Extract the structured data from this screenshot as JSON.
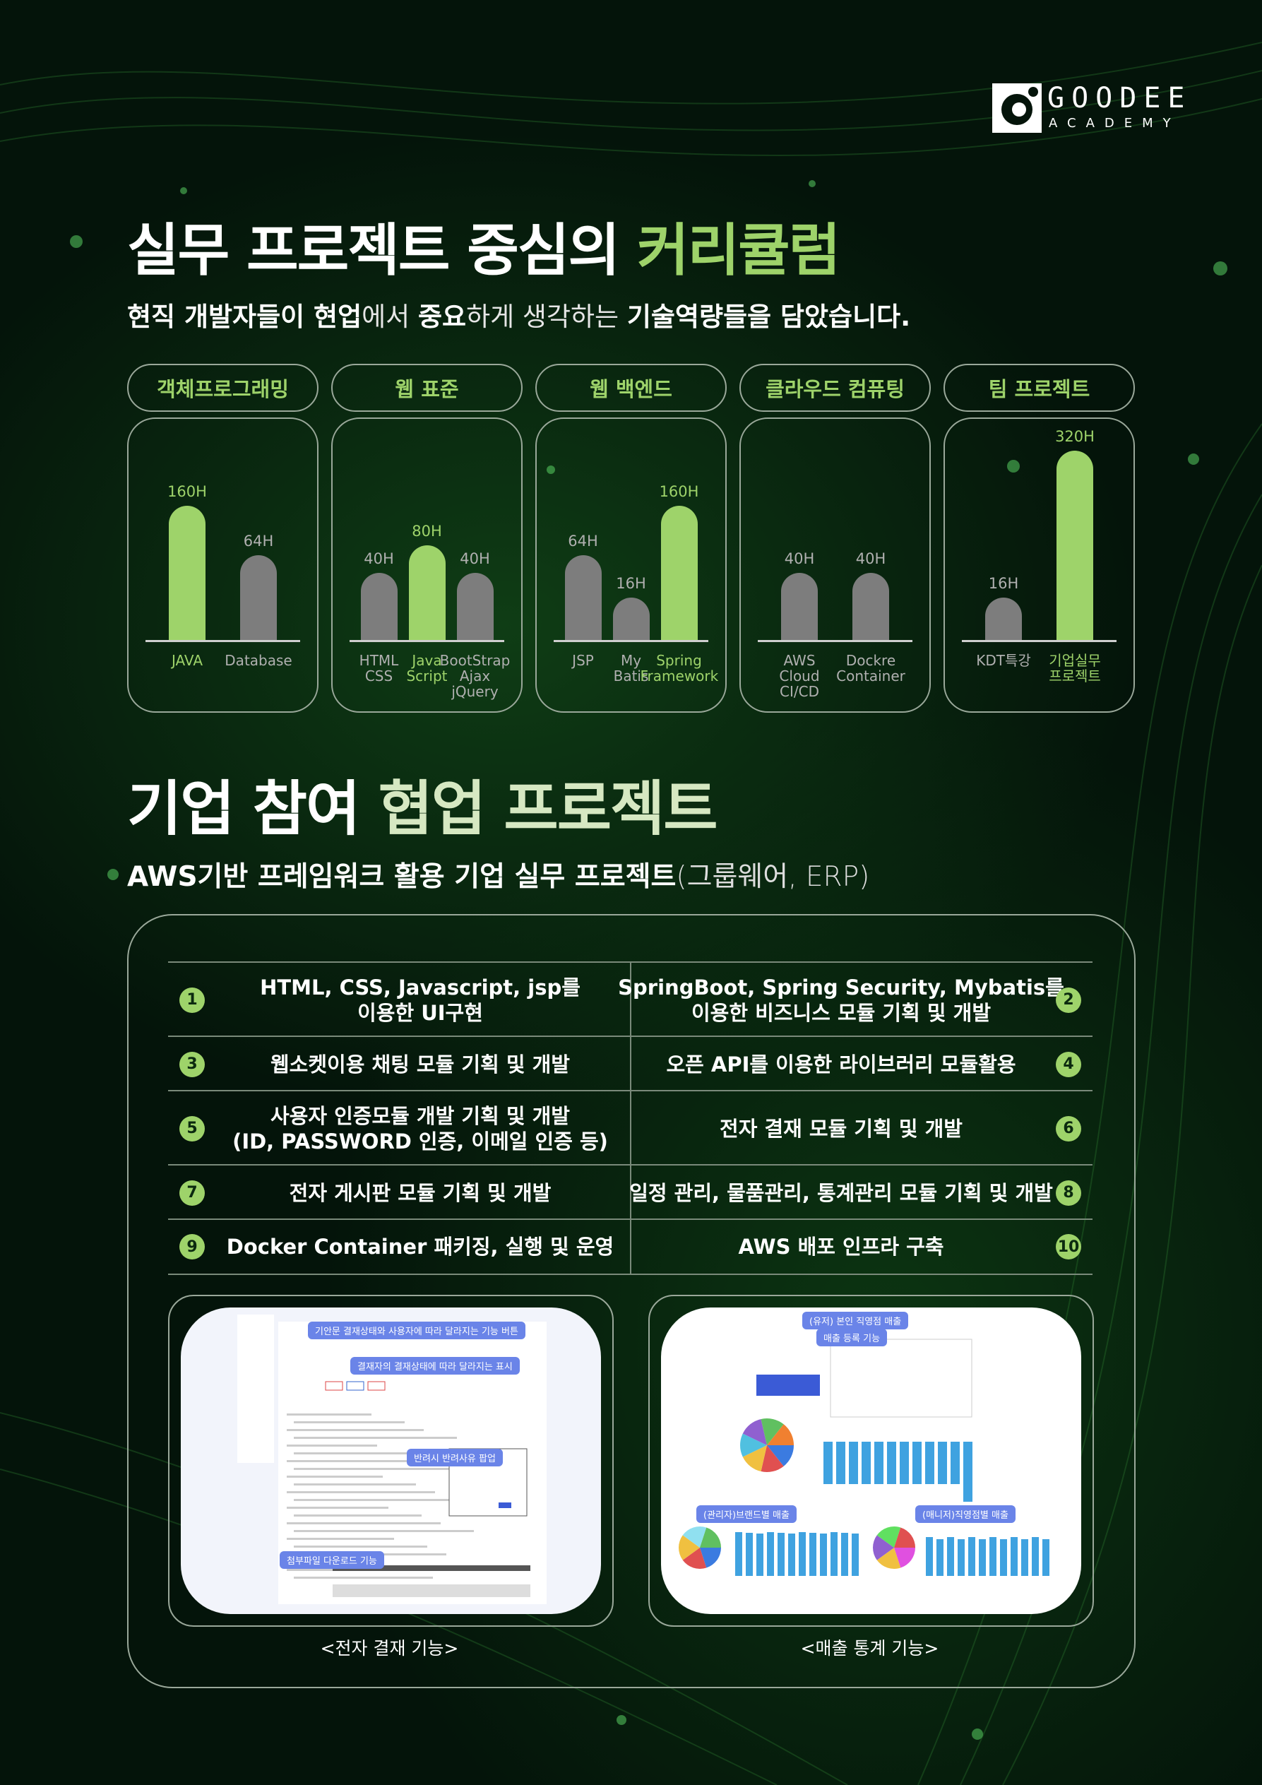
{
  "logo": {
    "name": "GOODEE",
    "sub": "ACADEMY"
  },
  "section1": {
    "title_main": "실무 프로젝트 중심의 ",
    "title_highlight": "커리큘럼",
    "subtitle": [
      {
        "text": "현직 개발자들이 현업",
        "bold": true
      },
      {
        "text": "에서 ",
        "bold": false
      },
      {
        "text": "중요",
        "bold": true
      },
      {
        "text": "하게 생각하는 ",
        "bold": false
      },
      {
        "text": "기술역량들을 담았습니다.",
        "bold": true
      }
    ]
  },
  "chart_data": [
    {
      "type": "bar",
      "title": "객체프로그래밍",
      "categories": [
        "JAVA",
        "Database"
      ],
      "values": [
        160,
        64
      ],
      "value_labels": [
        "160H",
        "64H"
      ],
      "colors": [
        "#9ed36a",
        "#7d7d7d"
      ]
    },
    {
      "type": "bar",
      "title": "웹 표준",
      "categories": [
        "HTML\nCSS",
        "Java\nScript",
        "BootStrap\nAjax\njQuery"
      ],
      "values": [
        40,
        80,
        40
      ],
      "value_labels": [
        "40H",
        "80H",
        "40H"
      ],
      "colors": [
        "#7d7d7d",
        "#9ed36a",
        "#7d7d7d"
      ]
    },
    {
      "type": "bar",
      "title": "웹 백엔드",
      "categories": [
        "JSP",
        "My\nBatis",
        "Spring\nFramework"
      ],
      "values": [
        64,
        16,
        160
      ],
      "value_labels": [
        "64H",
        "16H",
        "160H"
      ],
      "colors": [
        "#7d7d7d",
        "#7d7d7d",
        "#9ed36a"
      ]
    },
    {
      "type": "bar",
      "title": "클라우드 컴퓨팅",
      "categories": [
        "AWS\nCloud\nCI/CD",
        "Dockre\nContainer"
      ],
      "values": [
        40,
        40
      ],
      "value_labels": [
        "40H",
        "40H"
      ],
      "colors": [
        "#7d7d7d",
        "#7d7d7d"
      ]
    },
    {
      "type": "bar",
      "title": "팀 프로젝트",
      "categories": [
        "KDT특강",
        "기업실무\n프로젝트"
      ],
      "values": [
        16,
        320
      ],
      "value_labels": [
        "16H",
        "320H"
      ],
      "colors": [
        "#7d7d7d",
        "#9ed36a"
      ]
    }
  ],
  "section2": {
    "title_main": "기업 참여 ",
    "title_highlight": "협업 프로젝트",
    "subtitle_bold": "AWS기반 프레임워크 활용 기업 실무 프로젝트",
    "subtitle_light": "(그룹웨어, ERP)",
    "rows": [
      [
        {
          "number": 1,
          "text": "HTML, CSS, Javascript, jsp를\n이용한 UI구현"
        },
        {
          "number": 2,
          "text": "SpringBoot, Spring Security, Mybatis를\n이용한 비즈니스 모듈 기획 및 개발"
        }
      ],
      [
        {
          "number": 3,
          "text": "웹소켓이용 채팅 모듈 기획 및 개발"
        },
        {
          "number": 4,
          "text": "오픈 API를 이용한 라이브러리 모듈활용"
        }
      ],
      [
        {
          "number": 5,
          "text": "사용자 인증모듈 개발 기획 및 개발\n(ID, PASSWORD 인증, 이메일 인증 등)"
        },
        {
          "number": 6,
          "text": "전자 결재 모듈 기획 및 개발"
        }
      ],
      [
        {
          "number": 7,
          "text": "전자 게시판 모듈 기획 및 개발"
        },
        {
          "number": 8,
          "text": "일정 관리, 물품관리, 통계관리 모듈 기획 및 개발"
        }
      ],
      [
        {
          "number": 9,
          "text": "Docker Container 패키징, 실행 및 운영"
        },
        {
          "number": 10,
          "text": "AWS 배포 인프라 구축"
        }
      ]
    ],
    "screens": [
      {
        "caption": "<전자 결재 기능>",
        "callouts": [
          "기안문 결재상태와 사용자에 따라 달라지는 기능 버튼",
          "결재자의 결재상태에 따라 달라지는 표시",
          "반려시 반려사유 팝업",
          "첨부파일 다운로드 기능"
        ]
      },
      {
        "caption": "<매출 통계 기능>",
        "callouts": [
          "(유저) 본인 직영점 매출",
          "매출 등록 기능",
          "(관리자)브랜드별 매출",
          "(매니저)직영점별 매출"
        ]
      }
    ]
  }
}
